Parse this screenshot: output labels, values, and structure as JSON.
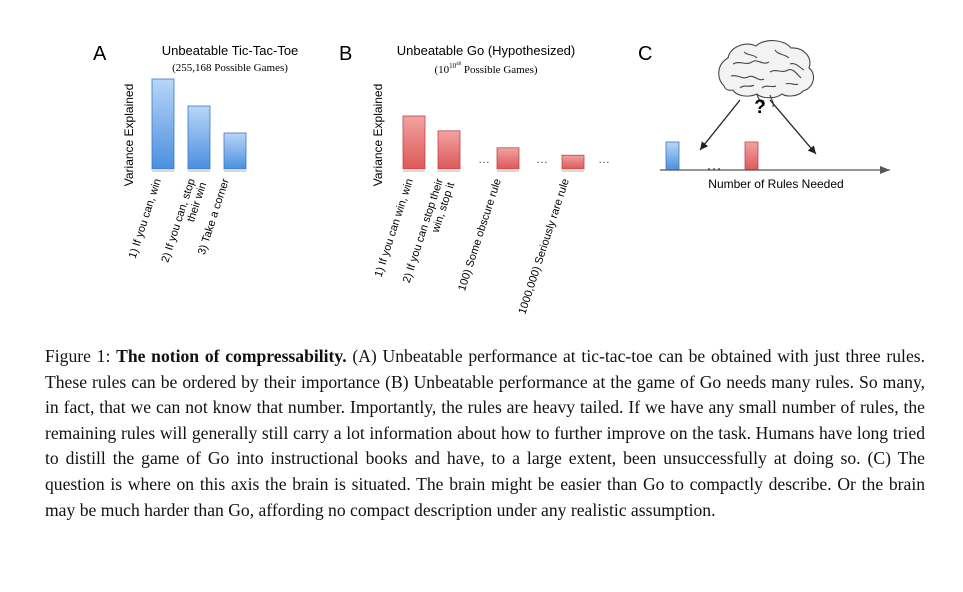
{
  "panel_a": {
    "letter": "A",
    "title": "Unbeatable Tic-Tac-Toe",
    "subtitle": "(255,168 Possible Games)",
    "ylabel": "Variance Explained",
    "labels": [
      [
        "1) If you can, win"
      ],
      [
        "2) If you can, stop",
        "their win"
      ],
      [
        "3) Take a corner"
      ]
    ]
  },
  "panel_b": {
    "letter": "B",
    "title": "Unbeatable Go (Hypothesized)",
    "subtitle_base": "(10",
    "subtitle_exp1": "10",
    "subtitle_exp2": "48",
    "subtitle_rest": " Possible Games)",
    "ylabel": "Variance Explained",
    "ellipsis": "…",
    "labels": [
      [
        "1) If you can win, win"
      ],
      [
        "2) If you can stop their",
        "win, stop it"
      ],
      [
        "100) Some obscure rule"
      ],
      [
        "1000,000) Seriously rare rule"
      ]
    ]
  },
  "panel_c": {
    "letter": "C",
    "question": "?",
    "ellipsis": "…",
    "axis_label": "Number of Rules Needed"
  },
  "caption": {
    "prefix": "Figure 1: ",
    "title": "The notion of compressability.",
    "body": " (A) Unbeatable performance at tic-tac-toe can be obtained with just three rules. These rules can be ordered by their importance (B) Unbeatable performance at the game of Go needs many rules. So many, in fact, that we can not know that number. Importantly, the rules are heavy tailed. If we have any small number of rules, the remaining rules will generally still carry a lot information about how to further improve on the task. Humans have long tried to distill the game of Go into instructional books and have, to a large extent, been unsuccessfully at doing so. (C) The question is where on this axis the brain is situated. The brain might be easier than Go to compactly describe. Or the brain may be much harder than Go, affording no compact description under any realistic assumption."
  },
  "chart_data": [
    {
      "type": "bar",
      "title": "Unbeatable Tic-Tac-Toe",
      "ylabel": "Variance Explained",
      "categories": [
        "1) If you can, win",
        "2) If you can, stop their win",
        "3) Take a corner"
      ],
      "values": [
        1.0,
        0.7,
        0.4
      ],
      "color": "#5b9be3"
    },
    {
      "type": "bar",
      "title": "Unbeatable Go (Hypothesized)",
      "ylabel": "Variance Explained",
      "categories": [
        "1) If you can win, win",
        "2) If you can stop their win, stop it",
        "100) Some obscure rule",
        "1000,000) Seriously rare rule"
      ],
      "values": [
        1.0,
        0.72,
        0.4,
        0.26
      ],
      "color": "#e36060"
    }
  ],
  "colors": {
    "blue_bar": "#5b9be3",
    "red_bar": "#e36060",
    "axis": "#555555"
  }
}
